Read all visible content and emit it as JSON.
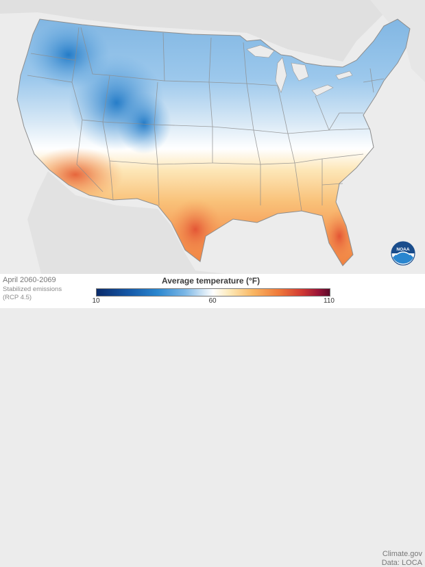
{
  "map": {
    "period": "April 2060-2069",
    "scenario": "Stabilized emissions (RCP 4.5)",
    "colors": {
      "cold_extreme": "#0a2a6a",
      "cold": "#2a86cf",
      "neutral": "#ffffff",
      "warm": "#f9b763",
      "hot": "#d13a33",
      "hot_extreme": "#5c0a2a",
      "land_outside": "#e2e2e2",
      "water": "#ececec",
      "borders": "#8c8c8c"
    }
  },
  "legend": {
    "title": "Average temperature (°F)",
    "min": "10",
    "mid": "60",
    "max": "110"
  },
  "credits": {
    "source": "Climate.gov",
    "data": "Data: LOCA"
  },
  "logo": {
    "text": "NOAA",
    "icon": "noaa-logo-icon"
  }
}
